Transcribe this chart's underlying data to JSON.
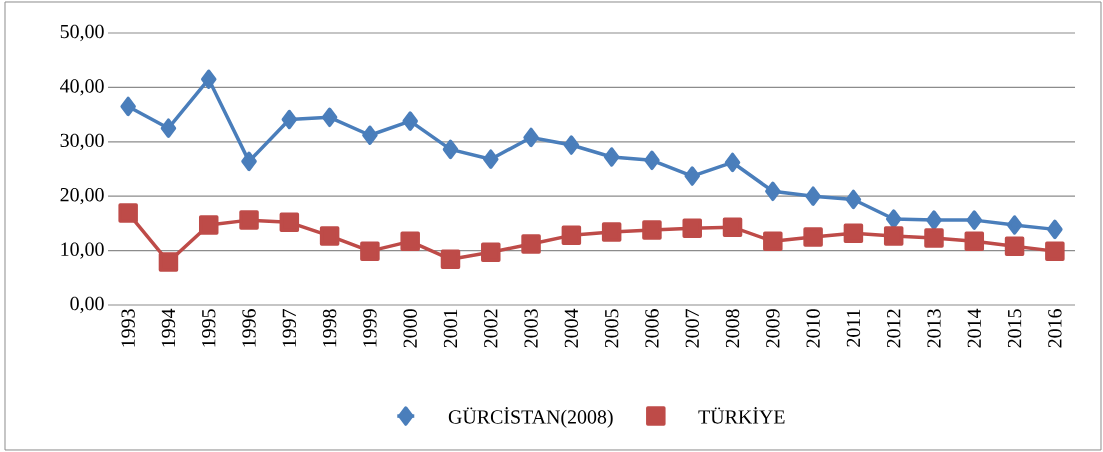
{
  "chart_data": {
    "type": "line",
    "categories": [
      "1993",
      "1994",
      "1995",
      "1996",
      "1997",
      "1998",
      "1999",
      "2000",
      "2001",
      "2002",
      "2003",
      "2004",
      "2005",
      "2006",
      "2007",
      "2008",
      "2009",
      "2010",
      "2011",
      "2012",
      "2013",
      "2014",
      "2015",
      "2016"
    ],
    "series": [
      {
        "name": "GÜRCİSTAN(2008)",
        "color": "#4a7ebb",
        "marker": "diamond",
        "values": [
          36.5,
          32.5,
          41.5,
          26.4,
          34.1,
          34.5,
          31.2,
          33.8,
          28.6,
          26.8,
          30.8,
          29.4,
          27.2,
          26.6,
          23.7,
          26.2,
          20.9,
          20.0,
          19.4,
          15.8,
          15.6,
          15.6,
          14.7,
          13.9
        ]
      },
      {
        "name": "TÜRKİYE",
        "color": "#be4b48",
        "marker": "square",
        "values": [
          16.9,
          7.9,
          14.7,
          15.6,
          15.2,
          12.7,
          9.9,
          11.7,
          8.4,
          9.7,
          11.2,
          12.8,
          13.4,
          13.8,
          14.1,
          14.3,
          11.7,
          12.5,
          13.2,
          12.7,
          12.3,
          11.7,
          10.8,
          9.9
        ]
      }
    ],
    "ylim": [
      0,
      50
    ],
    "yticks": [
      {
        "value": 0,
        "label": "0,00"
      },
      {
        "value": 10,
        "label": "10,00"
      },
      {
        "value": 20,
        "label": "20,00"
      },
      {
        "value": 30,
        "label": "30,00"
      },
      {
        "value": 40,
        "label": "40,00"
      },
      {
        "value": 50,
        "label": "50,00"
      }
    ],
    "grid": "y",
    "legend": "bottom",
    "line_style": "solid"
  }
}
